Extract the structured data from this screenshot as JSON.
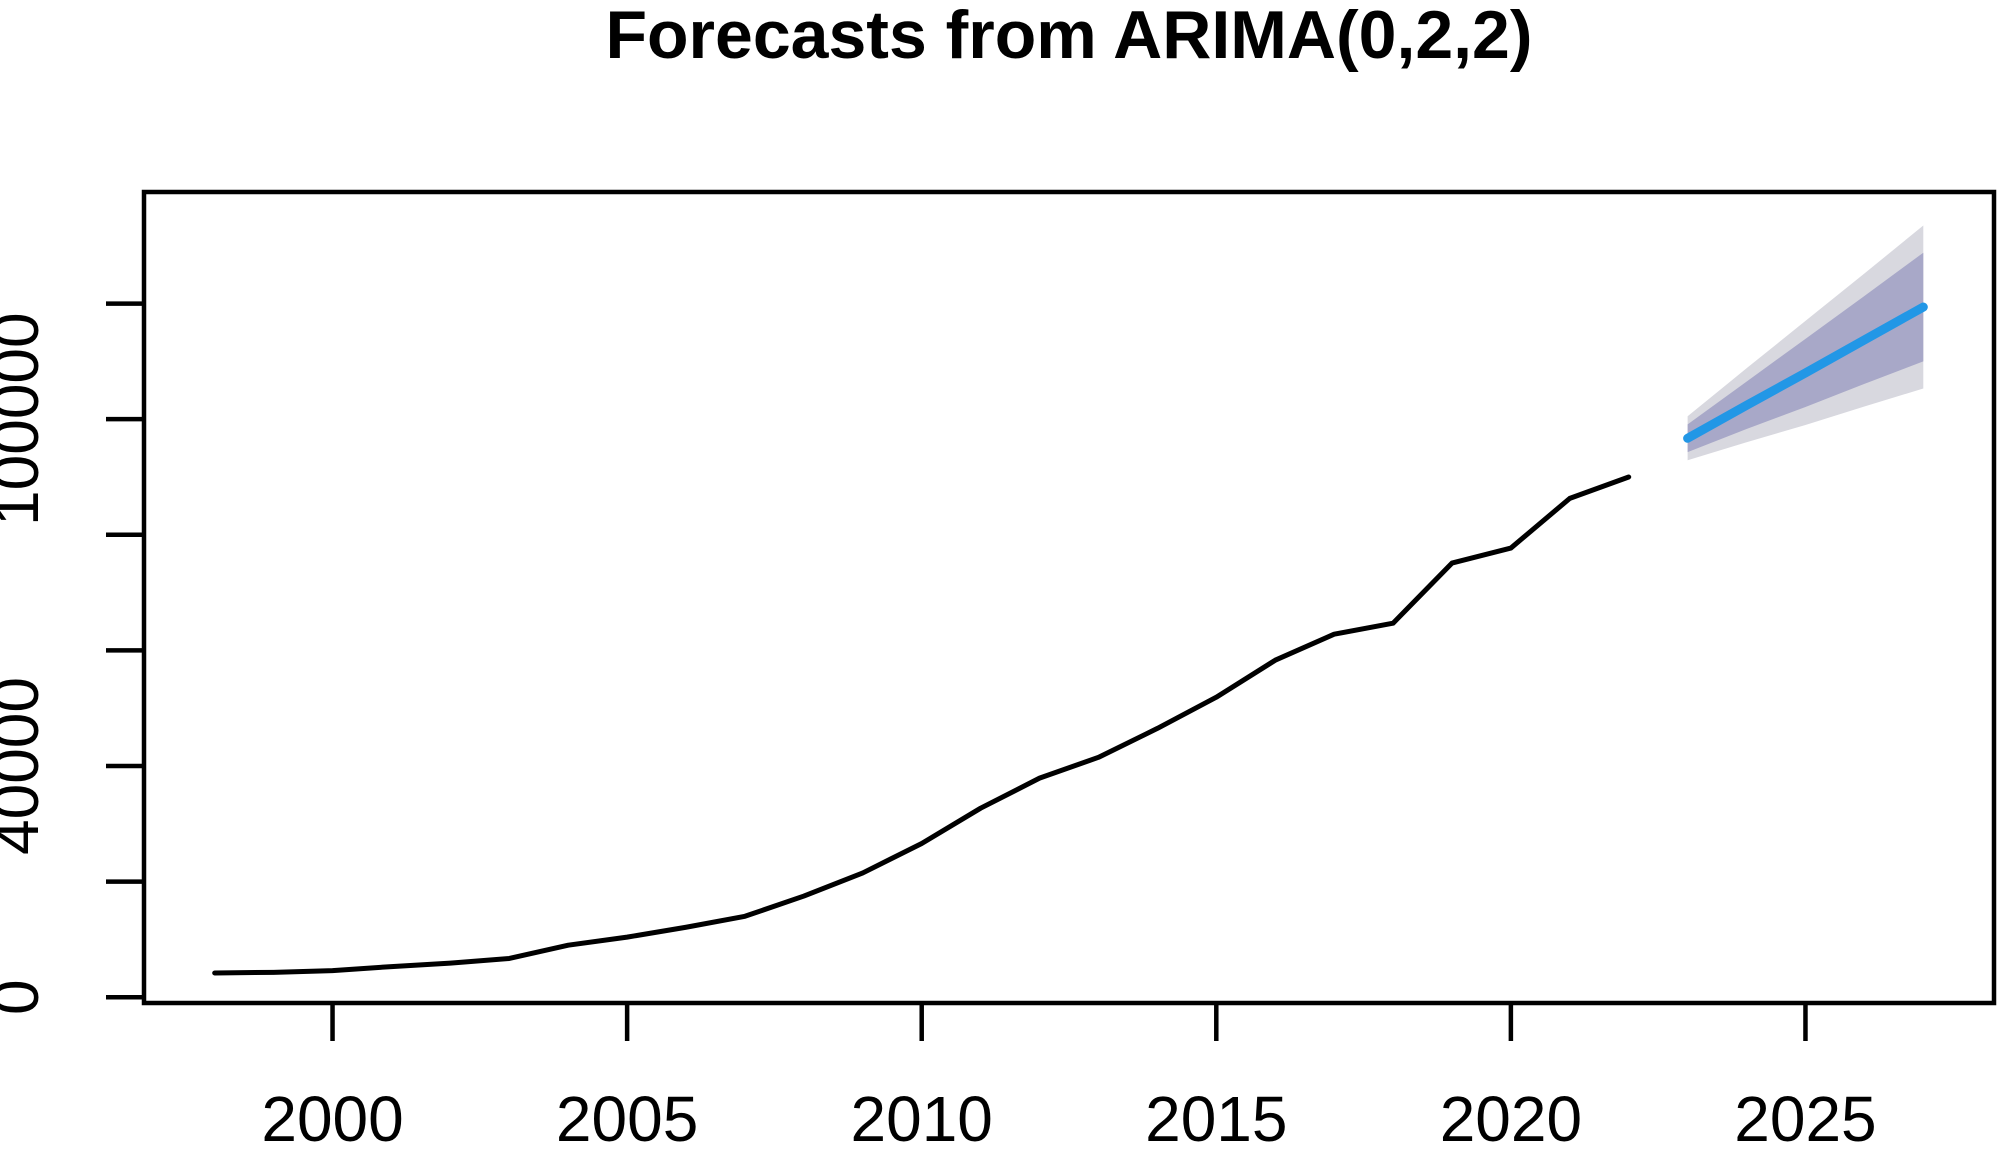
{
  "chart": {
    "title": "Forecasts from ARIMA(0,2,2)"
  },
  "chart_data": {
    "type": "line",
    "title": "Forecasts from ARIMA(0,2,2)",
    "xlabel": "",
    "ylabel": "",
    "grid": false,
    "legend": "none",
    "xlim": [
      1996.8,
      2028.2
    ],
    "ylim": [
      -1000,
      139300
    ],
    "x_ticks": [
      2000,
      2005,
      2010,
      2015,
      2020,
      2025
    ],
    "x_tick_labels": [
      "2000",
      "2005",
      "2010",
      "2015",
      "2020",
      "2025"
    ],
    "y_ticks_all": [
      0,
      20000,
      40000,
      60000,
      80000,
      100000,
      120000
    ],
    "y_tick_labels": [
      {
        "value": 0,
        "label": "0"
      },
      {
        "value": 40000,
        "label": "40000"
      },
      {
        "value": 100000,
        "label": "100000"
      }
    ],
    "series": [
      {
        "name": "observed",
        "color": "#000000",
        "x": [
          1998,
          1999,
          2000,
          2001,
          2002,
          2003,
          2004,
          2005,
          2006,
          2007,
          2008,
          2009,
          2010,
          2011,
          2012,
          2013,
          2014,
          2015,
          2016,
          2017,
          2018,
          2019,
          2020,
          2021,
          2022
        ],
        "values": [
          4200,
          4300,
          4600,
          5300,
          5900,
          6700,
          9000,
          10400,
          12100,
          14000,
          17500,
          21500,
          26600,
          32700,
          37900,
          41500,
          46500,
          51900,
          58300,
          62800,
          64700,
          75100,
          77700,
          86300,
          90000
        ]
      },
      {
        "name": "forecast-mean",
        "color": "#2297E6",
        "x": [
          2023,
          2024,
          2025,
          2026,
          2027
        ],
        "values": [
          96700,
          102400,
          108000,
          113700,
          119400
        ]
      }
    ],
    "intervals": [
      {
        "level": 95,
        "color": "#D8D8DF",
        "x": [
          2023,
          2024,
          2025,
          2026,
          2027
        ],
        "lower": [
          92900,
          96000,
          99000,
          102200,
          105300
        ],
        "upper": [
          100500,
          108800,
          117000,
          125200,
          133500
        ]
      },
      {
        "level": 80,
        "color": "#A8A8C8",
        "x": [
          2023,
          2024,
          2025,
          2026,
          2027
        ],
        "lower": [
          94300,
          98300,
          102100,
          106100,
          110000
        ],
        "upper": [
          99100,
          106500,
          113900,
          121300,
          128800
        ]
      }
    ]
  },
  "style": {
    "plot_border_color": "#000000",
    "background": "#ffffff",
    "forecast_line_color": "#2297E6",
    "band_80_color": "#A8A8C8",
    "band_95_color": "#D8D8DF"
  }
}
